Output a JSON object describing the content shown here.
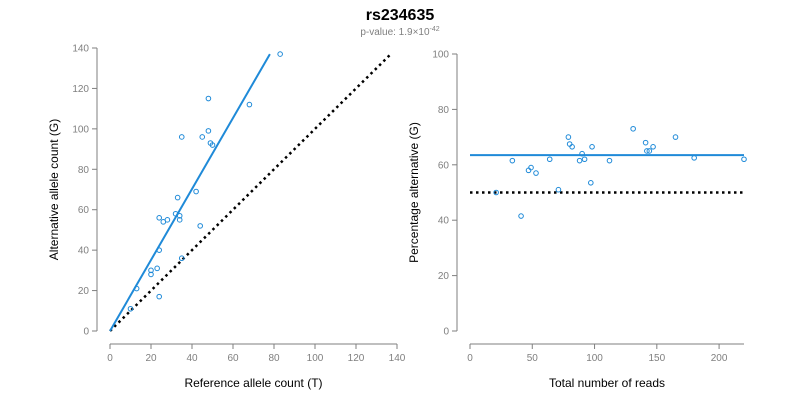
{
  "title": "rs234635",
  "subtitle": {
    "prefix": "p-value: 1.9×10",
    "exponent": "-42"
  },
  "colors": {
    "points": "#1f8ad8",
    "fit": "#1f8ad8",
    "reference": "#000000",
    "axis": "#7f7f7f"
  },
  "chart_data": [
    {
      "type": "scatter",
      "xlabel": "Reference allele count (T)",
      "ylabel": "Alternative allele count (G)",
      "xlim": [
        0,
        140
      ],
      "ylim": [
        0,
        140
      ],
      "x_ticks": [
        0,
        20,
        40,
        60,
        80,
        100,
        120,
        140
      ],
      "y_ticks": [
        0,
        20,
        40,
        60,
        80,
        100,
        120,
        140
      ],
      "grid": false,
      "points": [
        {
          "x": 10,
          "y": 11
        },
        {
          "x": 13,
          "y": 21
        },
        {
          "x": 20,
          "y": 28
        },
        {
          "x": 20,
          "y": 30
        },
        {
          "x": 23,
          "y": 31
        },
        {
          "x": 24,
          "y": 17
        },
        {
          "x": 24,
          "y": 40
        },
        {
          "x": 24,
          "y": 56
        },
        {
          "x": 26,
          "y": 54
        },
        {
          "x": 28,
          "y": 55
        },
        {
          "x": 32,
          "y": 58
        },
        {
          "x": 33,
          "y": 66
        },
        {
          "x": 34,
          "y": 55
        },
        {
          "x": 34,
          "y": 57
        },
        {
          "x": 35,
          "y": 36
        },
        {
          "x": 35,
          "y": 96
        },
        {
          "x": 42,
          "y": 69
        },
        {
          "x": 44,
          "y": 52
        },
        {
          "x": 45,
          "y": 96
        },
        {
          "x": 48,
          "y": 99
        },
        {
          "x": 48,
          "y": 115
        },
        {
          "x": 49,
          "y": 93
        },
        {
          "x": 50,
          "y": 92
        },
        {
          "x": 68,
          "y": 112
        },
        {
          "x": 83,
          "y": 137
        }
      ],
      "fit_line": {
        "x": [
          0,
          78
        ],
        "y": [
          0,
          137
        ]
      },
      "reference_line": {
        "x": [
          0,
          137
        ],
        "y": [
          0,
          137
        ]
      }
    },
    {
      "type": "scatter",
      "xlabel": "Total number of reads",
      "ylabel": "Percentage alternative (G)",
      "xlim": [
        0,
        220
      ],
      "ylim": [
        0,
        100
      ],
      "x_ticks": [
        0,
        50,
        100,
        150,
        200
      ],
      "y_ticks": [
        0,
        20,
        40,
        60,
        80,
        100
      ],
      "grid": false,
      "points": [
        {
          "x": 21,
          "y": 50
        },
        {
          "x": 34,
          "y": 61.5
        },
        {
          "x": 41,
          "y": 41.5
        },
        {
          "x": 47,
          "y": 58
        },
        {
          "x": 49,
          "y": 59
        },
        {
          "x": 53,
          "y": 57
        },
        {
          "x": 64,
          "y": 62
        },
        {
          "x": 71,
          "y": 51
        },
        {
          "x": 79,
          "y": 70
        },
        {
          "x": 80,
          "y": 67.5
        },
        {
          "x": 82,
          "y": 66.5
        },
        {
          "x": 88,
          "y": 61.5
        },
        {
          "x": 90,
          "y": 64
        },
        {
          "x": 92,
          "y": 62
        },
        {
          "x": 97,
          "y": 53.5
        },
        {
          "x": 98,
          "y": 66.5
        },
        {
          "x": 112,
          "y": 61.5
        },
        {
          "x": 131,
          "y": 73
        },
        {
          "x": 141,
          "y": 68
        },
        {
          "x": 142,
          "y": 65
        },
        {
          "x": 144,
          "y": 65
        },
        {
          "x": 147,
          "y": 66.5
        },
        {
          "x": 165,
          "y": 70
        },
        {
          "x": 180,
          "y": 62.5
        },
        {
          "x": 220,
          "y": 62
        }
      ],
      "fit_line": {
        "x": [
          0,
          220
        ],
        "y": [
          63.5,
          63.5
        ]
      },
      "reference_line": {
        "x": [
          0,
          220
        ],
        "y": [
          50,
          50
        ]
      }
    }
  ]
}
